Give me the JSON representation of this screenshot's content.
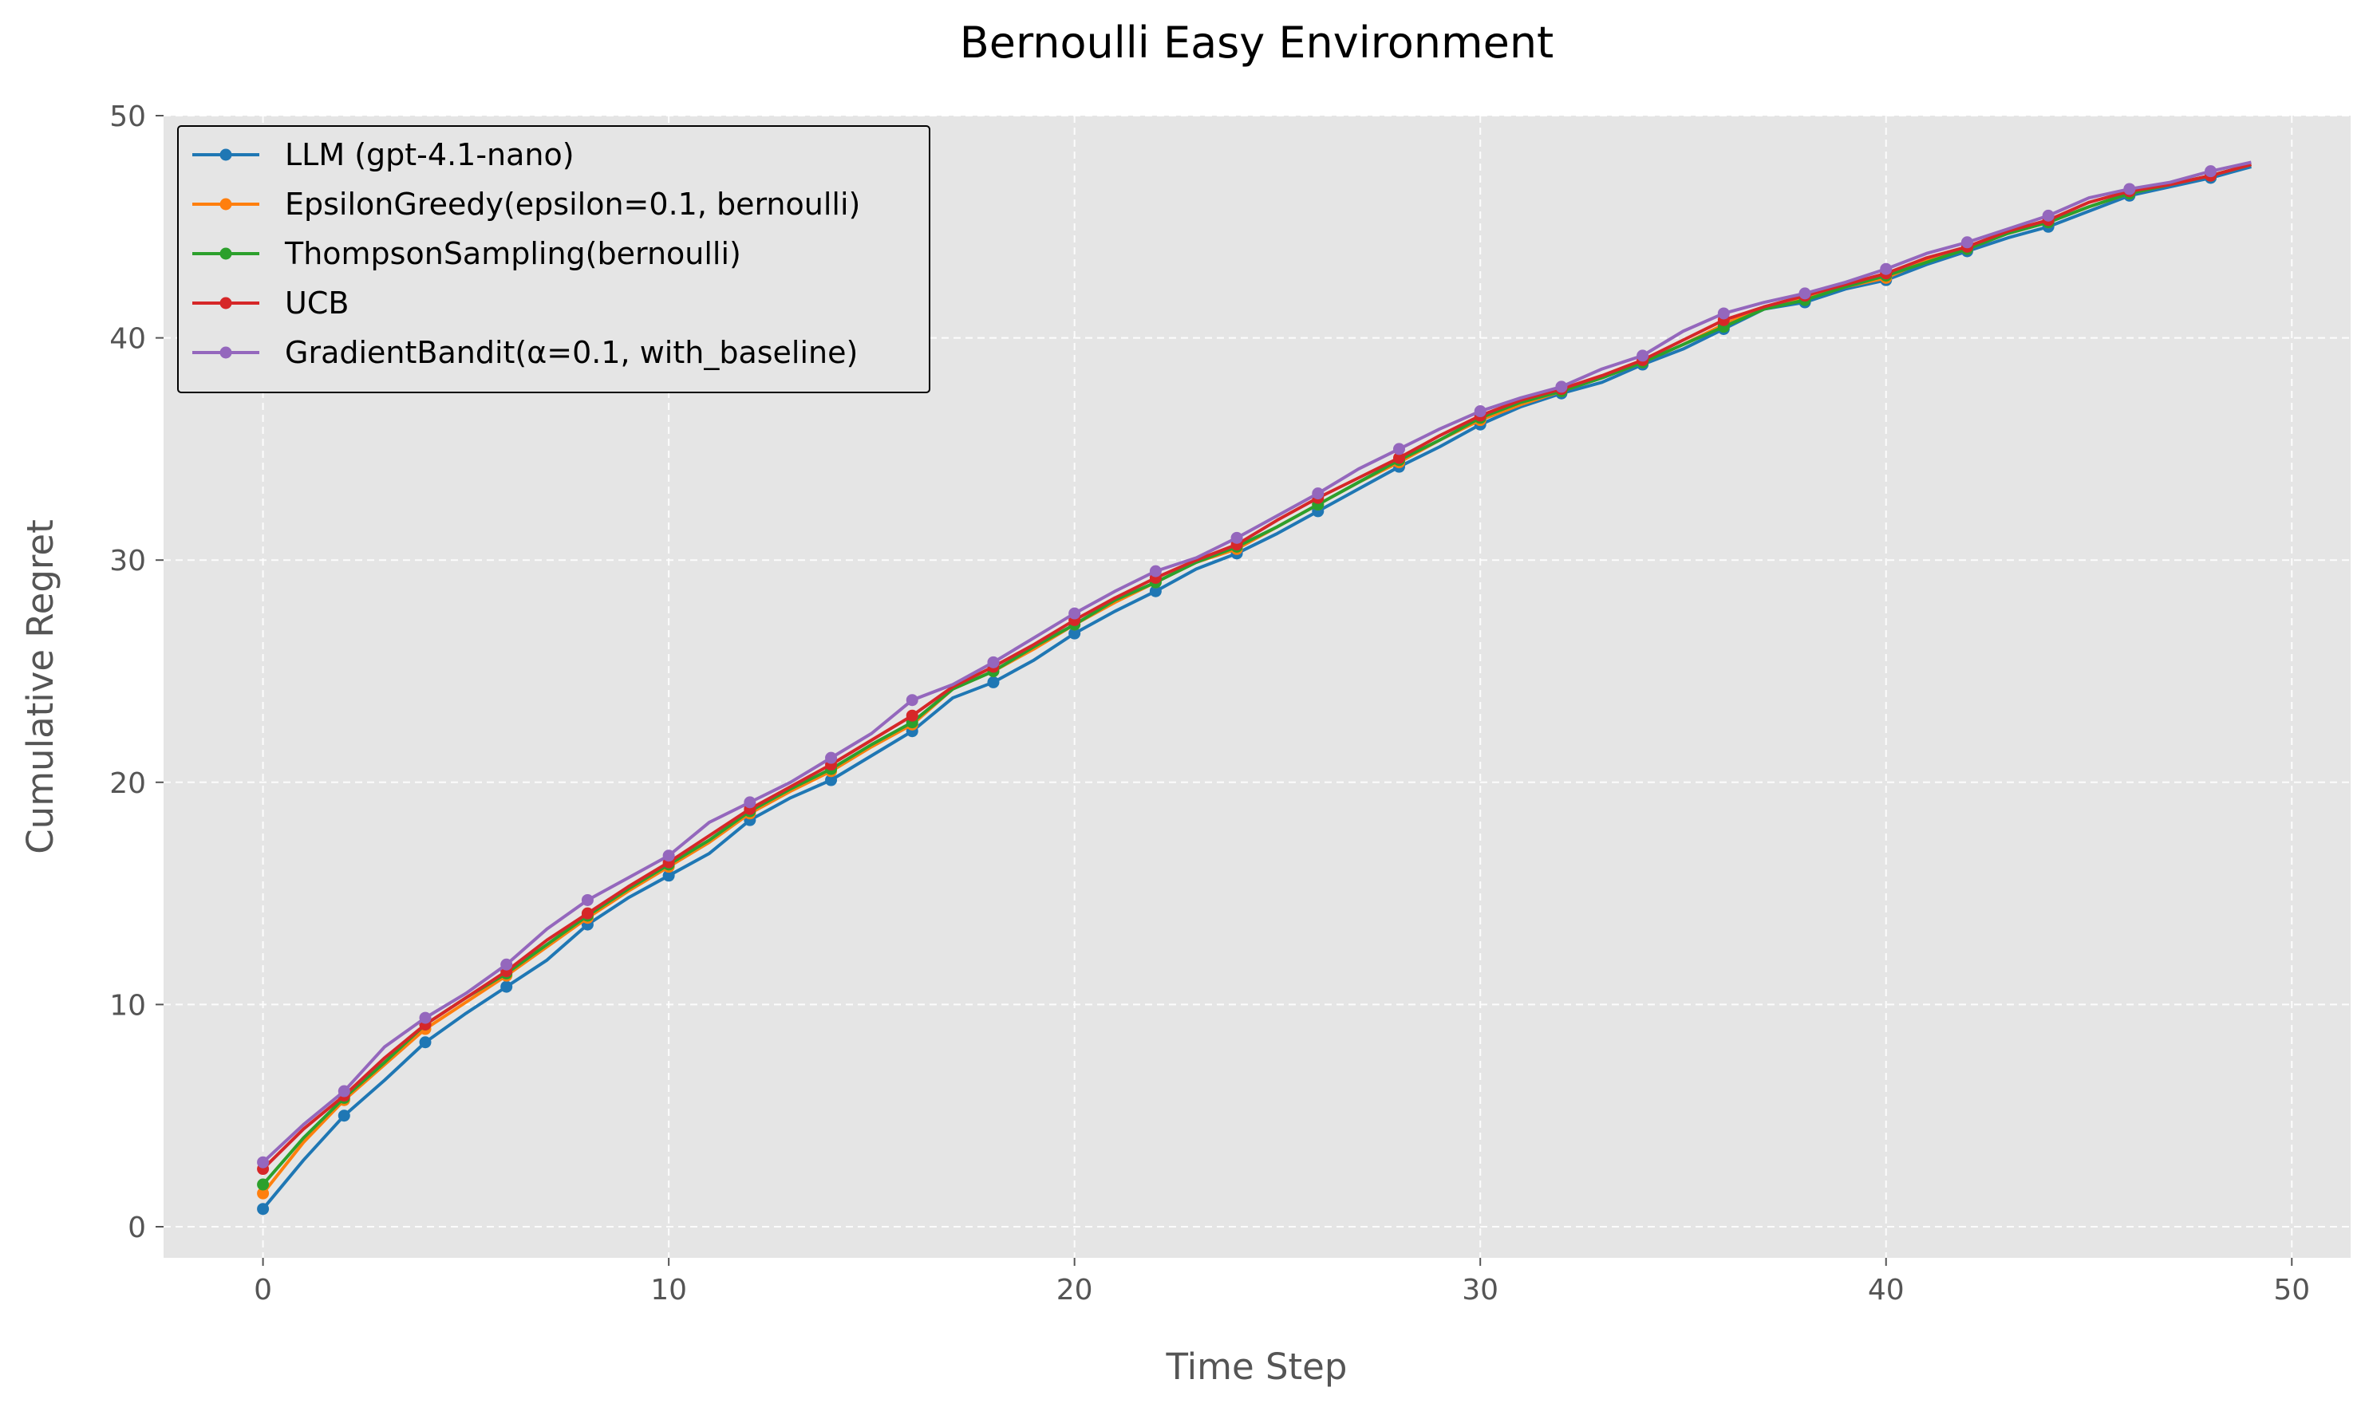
{
  "chart_data": {
    "type": "line",
    "title": "Bernoulli Easy Environment",
    "xlabel": "Time Step",
    "ylabel": "Cumulative Regret",
    "xlim": [
      -2.45,
      51.45
    ],
    "ylim": [
      -1.4,
      50.0
    ],
    "xticks": [
      0,
      10,
      20,
      30,
      40,
      50
    ],
    "yticks": [
      0,
      10,
      20,
      30,
      40,
      50
    ],
    "grid": true,
    "legend_position": "upper-left",
    "x": [
      0,
      1,
      2,
      3,
      4,
      5,
      6,
      7,
      8,
      9,
      10,
      11,
      12,
      13,
      14,
      15,
      16,
      17,
      18,
      19,
      20,
      21,
      22,
      23,
      24,
      25,
      26,
      27,
      28,
      29,
      30,
      31,
      32,
      33,
      34,
      35,
      36,
      37,
      38,
      39,
      40,
      41,
      42,
      43,
      44,
      45,
      46,
      47,
      48,
      49
    ],
    "marker_every": 2,
    "series": [
      {
        "name": "LLM (gpt-4.1-nano)",
        "color": "#1f77b4",
        "values": [
          0.8,
          3.0,
          5.0,
          6.6,
          8.3,
          9.6,
          10.8,
          12.0,
          13.6,
          14.8,
          15.8,
          16.8,
          18.3,
          19.3,
          20.1,
          21.2,
          22.3,
          23.8,
          24.5,
          25.5,
          26.7,
          27.7,
          28.6,
          29.6,
          30.3,
          31.2,
          32.2,
          33.2,
          34.2,
          35.1,
          36.1,
          36.9,
          37.5,
          38.0,
          38.8,
          39.5,
          40.4,
          41.3,
          41.6,
          42.2,
          42.6,
          43.3,
          43.9,
          44.5,
          45.0,
          45.7,
          46.4,
          46.8,
          47.2,
          47.7
        ]
      },
      {
        "name": "EpsilonGreedy(epsilon=0.1, bernoulli)",
        "color": "#ff7f0e",
        "values": [
          1.5,
          3.8,
          5.7,
          7.3,
          8.9,
          10.1,
          11.3,
          12.6,
          13.9,
          15.1,
          16.2,
          17.3,
          18.6,
          19.6,
          20.5,
          21.6,
          22.6,
          24.2,
          25.0,
          26.0,
          27.1,
          28.1,
          29.0,
          29.9,
          30.5,
          31.5,
          32.5,
          33.5,
          34.4,
          35.4,
          36.3,
          37.0,
          37.6,
          38.2,
          38.9,
          39.7,
          40.6,
          41.4,
          41.8,
          42.3,
          42.7,
          43.5,
          44.0,
          44.7,
          45.2,
          45.9,
          46.5,
          46.9,
          47.3,
          47.8
        ]
      },
      {
        "name": "ThompsonSampling(bernoulli)",
        "color": "#2ca02c",
        "values": [
          1.9,
          4.0,
          5.8,
          7.4,
          9.1,
          10.3,
          11.4,
          12.7,
          14.0,
          15.2,
          16.3,
          17.4,
          18.7,
          19.7,
          20.6,
          21.7,
          22.7,
          24.2,
          25.0,
          26.1,
          27.1,
          28.2,
          29.0,
          29.9,
          30.6,
          31.5,
          32.5,
          33.5,
          34.5,
          35.4,
          36.4,
          37.1,
          37.6,
          38.2,
          38.9,
          39.7,
          40.5,
          41.3,
          41.7,
          42.3,
          42.8,
          43.4,
          44.0,
          44.7,
          45.2,
          45.9,
          46.5,
          46.9,
          47.3,
          47.8
        ]
      },
      {
        "name": "UCB",
        "color": "#d62728",
        "values": [
          2.6,
          4.4,
          5.9,
          7.6,
          9.1,
          10.3,
          11.5,
          12.9,
          14.1,
          15.3,
          16.4,
          17.6,
          18.8,
          19.8,
          20.8,
          21.9,
          23.0,
          24.3,
          25.2,
          26.2,
          27.3,
          28.3,
          29.2,
          30.0,
          30.7,
          31.8,
          32.8,
          33.7,
          34.6,
          35.6,
          36.5,
          37.2,
          37.7,
          38.3,
          39.0,
          39.9,
          40.8,
          41.4,
          41.9,
          42.4,
          42.9,
          43.6,
          44.1,
          44.8,
          45.3,
          46.1,
          46.6,
          46.9,
          47.3,
          47.8
        ]
      },
      {
        "name": "GradientBandit(α=0.1, with_baseline)",
        "color": "#9467bd",
        "values": [
          2.9,
          4.6,
          6.1,
          8.1,
          9.4,
          10.5,
          11.8,
          13.4,
          14.7,
          15.7,
          16.7,
          18.2,
          19.1,
          20.0,
          21.1,
          22.2,
          23.7,
          24.4,
          25.4,
          26.5,
          27.6,
          28.6,
          29.5,
          30.1,
          31.0,
          32.0,
          33.0,
          34.1,
          35.0,
          35.9,
          36.7,
          37.3,
          37.8,
          38.6,
          39.2,
          40.3,
          41.1,
          41.6,
          42.0,
          42.5,
          43.1,
          43.8,
          44.3,
          44.9,
          45.5,
          46.3,
          46.7,
          47.0,
          47.5,
          47.9
        ]
      }
    ]
  }
}
